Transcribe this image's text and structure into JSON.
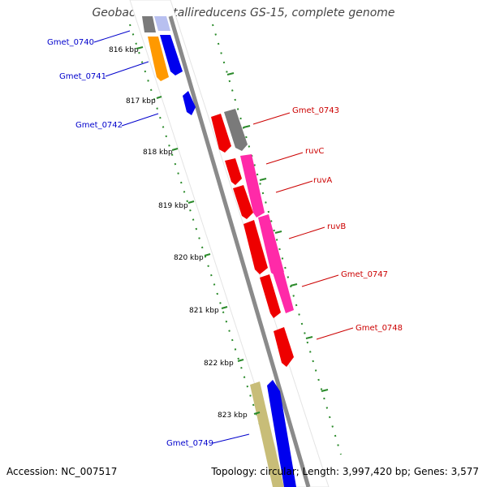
{
  "title": "Geobacter metallireducens GS-15, complete genome",
  "footer": {
    "accession": "Accession: NC_007517",
    "summary": "Topology: circular; Length: 3,997,420 bp; Genes: 3,577"
  },
  "colors": {
    "backbone": "#888888",
    "dots": "#2a8a2a",
    "label_left": "#0000cc",
    "label_right": "#cc0000",
    "gray_gene": "#7a7a7a",
    "orange_gene": "#ff9900",
    "blue_gene": "#0000ee",
    "red_gene": "#ee0000",
    "magenta_gene": "#ff2aa8",
    "olive_gene": "#c8bd78"
  },
  "scale_labels": [
    "816 kbp",
    "817 kbp",
    "818 kbp",
    "819 kbp",
    "820 kbp",
    "821 kbp",
    "822 kbp",
    "823 kbp"
  ],
  "gene_labels_left": [
    "Gmet_0740",
    "Gmet_0741",
    "Gmet_0742",
    "Gmet_0749"
  ],
  "gene_labels_right": [
    "Gmet_0743",
    "ruvC",
    "ruvA",
    "ruvB",
    "Gmet_0747",
    "Gmet_0748"
  ]
}
